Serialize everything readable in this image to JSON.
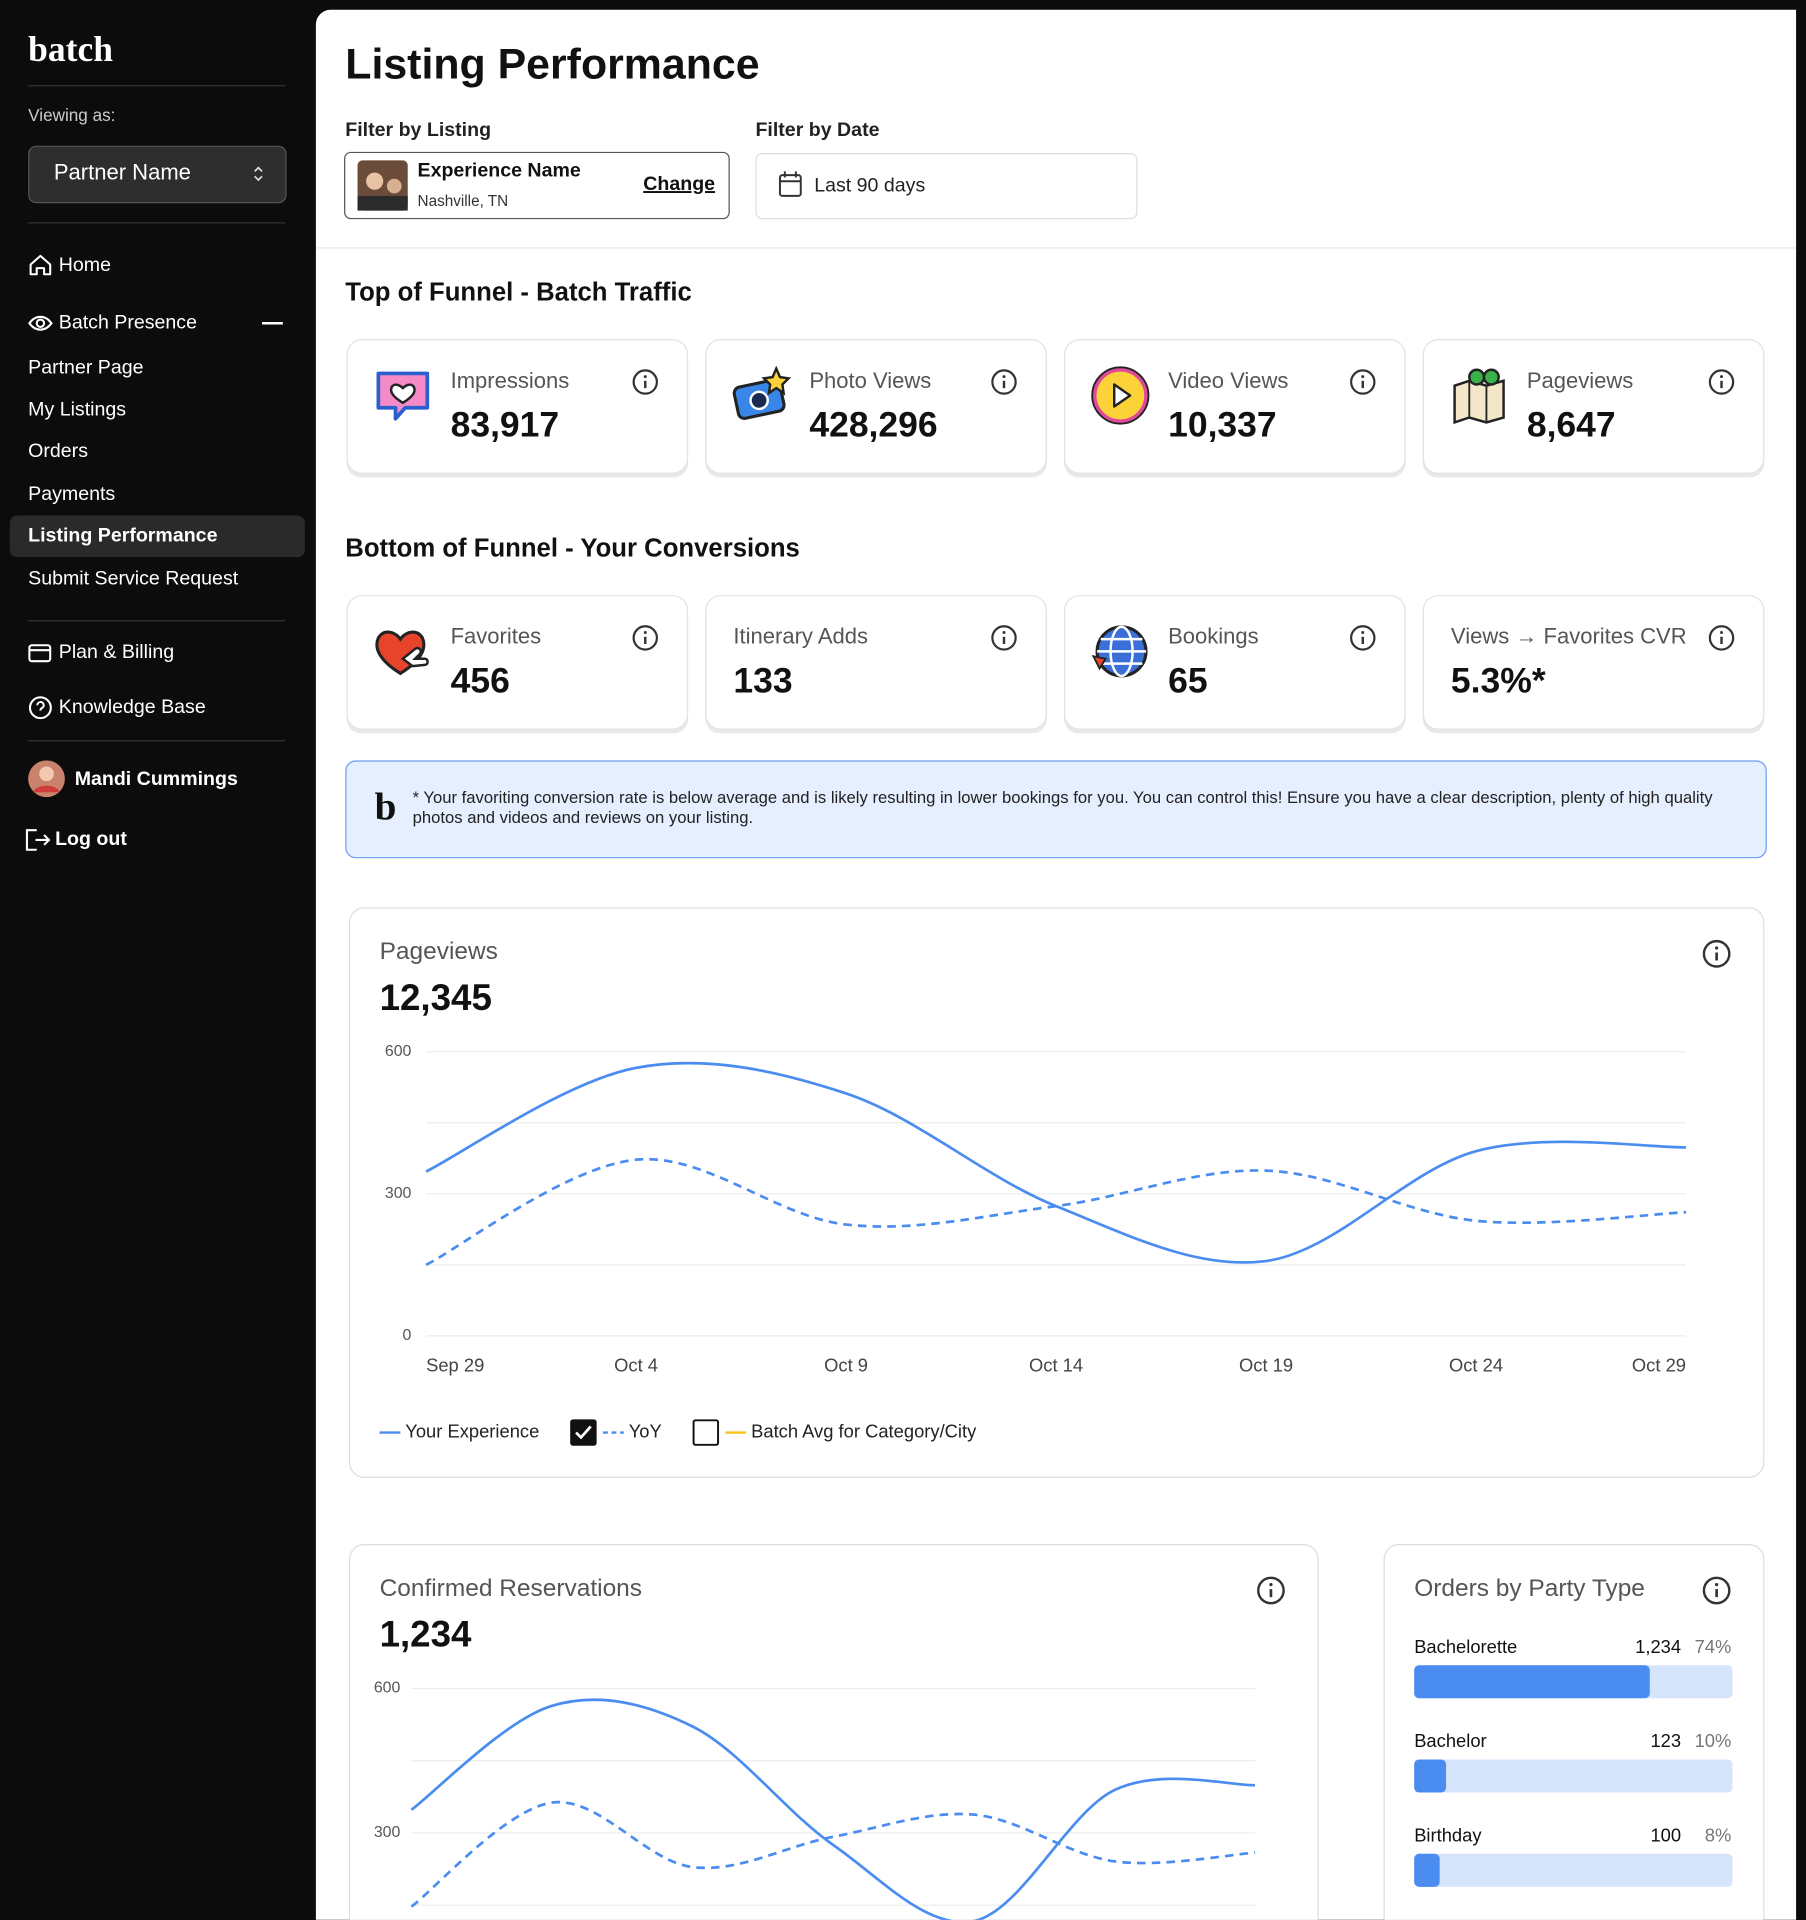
{
  "sidebar": {
    "logo": "batch",
    "viewing_as": "Viewing as:",
    "partner": "Partner Name",
    "home": "Home",
    "section": "Batch Presence",
    "sub": [
      "Partner Page",
      "My Listings",
      "Orders",
      "Payments",
      "Listing Performance",
      "Submit Service Request"
    ],
    "plan": "Plan & Billing",
    "knowledge": "Knowledge Base",
    "user": "Mandi Cummings",
    "logout": "Log out"
  },
  "header": {
    "title": "Listing Performance",
    "filter_listing_label": "Filter by Listing",
    "listing_name": "Experience Name",
    "listing_location": "Nashville, TN",
    "change": "Change",
    "filter_date_label": "Filter by Date",
    "date_range": "Last 90 days"
  },
  "top_funnel": {
    "title": "Top of Funnel - Batch Traffic",
    "cards": [
      {
        "label": "Impressions",
        "value": "83,917"
      },
      {
        "label": "Photo Views",
        "value": "428,296"
      },
      {
        "label": "Video Views",
        "value": "10,337"
      },
      {
        "label": "Pageviews",
        "value": "8,647"
      }
    ]
  },
  "bottom_funnel": {
    "title": "Bottom of Funnel - Your Conversions",
    "cards": [
      {
        "label": "Favorites",
        "value": "456"
      },
      {
        "label": "Itinerary Adds",
        "value": "133"
      },
      {
        "label": "Bookings",
        "value": "65"
      },
      {
        "label": "Views → Favorites CVR",
        "value": "5.3%*"
      }
    ]
  },
  "note": {
    "logo": "b",
    "text": "* Your favoriting conversion rate is below average and is likely resulting in lower bookings for you. You can control this! Ensure you have a clear description, plenty of high quality photos and videos and reviews on your listing."
  },
  "chart_data": [
    {
      "type": "line",
      "title": "Pageviews",
      "total": "12,345",
      "categories": [
        "Sep 29",
        "Oct 4",
        "Oct 9",
        "Oct 14",
        "Oct 19",
        "Oct 24",
        "Oct 29"
      ],
      "series": [
        {
          "name": "Your Experience",
          "color": "#4a8cf0",
          "style": "solid",
          "values": [
            347,
            566,
            512,
            274,
            158,
            390,
            398
          ]
        },
        {
          "name": "YoY",
          "color": "#4a8cf0",
          "style": "dashed",
          "checked": true,
          "values": [
            150,
            372,
            235,
            274,
            349,
            243,
            261
          ]
        },
        {
          "name": "Batch Avg for Category/City",
          "color": "#f5c518",
          "style": "solid",
          "checked": false
        }
      ],
      "ylim": [
        0,
        600
      ],
      "yticks": [
        0,
        300,
        600
      ],
      "minor_yticks": [
        150,
        450
      ],
      "grid": true
    },
    {
      "type": "line",
      "title": "Confirmed Reservations",
      "total": "1,234",
      "series": [
        {
          "color": "#4a8cf0",
          "style": "solid",
          "values": [
            348,
            564,
            521,
            275,
            117,
            389,
            399
          ]
        },
        {
          "color": "#4a8cf0",
          "style": "dashed",
          "values": [
            147,
            363,
            229,
            292,
            338,
            241,
            259
          ]
        }
      ],
      "ylim": [
        0,
        600
      ],
      "yticks": [
        300,
        600
      ],
      "minor_yticks": [
        150,
        450
      ],
      "grid": true
    },
    {
      "type": "hbar",
      "title": "Orders by Party Type",
      "categories": [
        "Bachelorette",
        "Bachelor",
        "Birthday"
      ],
      "values": [
        1234,
        123,
        100
      ],
      "value_labels": [
        "1,234",
        "123",
        "100"
      ],
      "percents": [
        74,
        10,
        8
      ],
      "percent_labels": [
        "74%",
        "10%",
        "8%"
      ],
      "xlim": [
        0,
        100
      ],
      "color": "#4a8cf0",
      "track_color": "#d6e5fc"
    }
  ]
}
